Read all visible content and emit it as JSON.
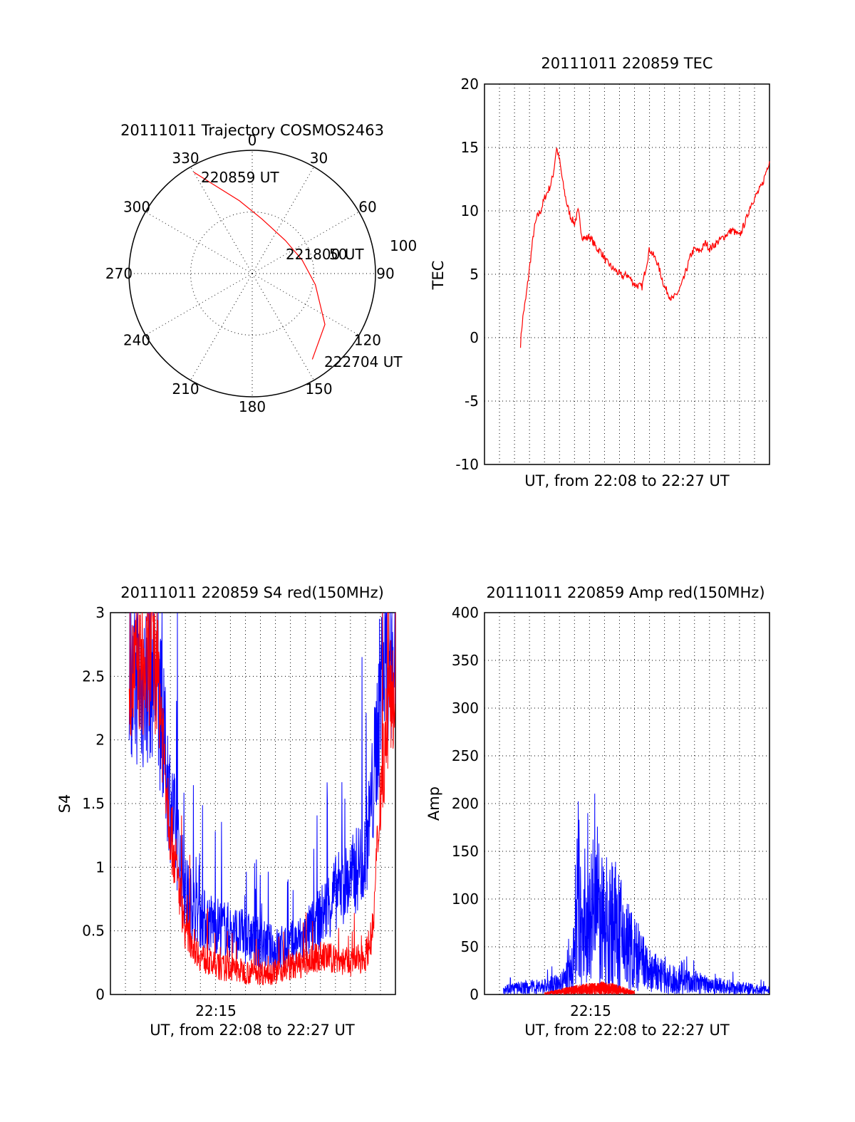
{
  "polar": {
    "title": "20111011 Trajectory COSMOS2463",
    "azimuth_labels": [
      "0",
      "30",
      "60",
      "90",
      "120",
      "150",
      "180",
      "210",
      "240",
      "270",
      "300",
      "330"
    ],
    "radius_label": "100",
    "start_label": "220859 UT",
    "mid_label": "221800 UT",
    "mid_label_overlap": "50",
    "end_label": "222704 UT",
    "track_color": "#ff0000",
    "chart_data": {
      "type": "polar-line",
      "rmax": 100,
      "rings": [
        50,
        100
      ],
      "spokes_deg": [
        0,
        30,
        60,
        90,
        120,
        150,
        180,
        210,
        240,
        270,
        300,
        330
      ],
      "track": [
        {
          "az": 330,
          "r": 95
        },
        {
          "az": 350,
          "r": 60
        },
        {
          "az": 10,
          "r": 45
        },
        {
          "az": 45,
          "r": 38
        },
        {
          "az": 75,
          "r": 42
        },
        {
          "az": 100,
          "r": 52
        },
        {
          "az": 125,
          "r": 72
        },
        {
          "az": 145,
          "r": 85
        }
      ]
    }
  },
  "tec": {
    "title": "20111011 220859 TEC",
    "ylabel": "TEC",
    "xlabel": "UT, from 22:08 to 22:27 UT",
    "yticks": [
      "-10",
      "-5",
      "0",
      "5",
      "10",
      "15",
      "20"
    ],
    "line_color": "#ff0000",
    "chart_data": {
      "type": "line",
      "xlim": [
        22.1,
        22.48
      ],
      "ylim": [
        -10,
        20
      ],
      "series": [
        {
          "x": [
            22.148,
            22.15,
            22.152,
            22.155,
            22.158,
            22.162,
            22.166,
            22.17,
            22.175,
            22.18,
            22.184,
            22.188,
            22.192,
            22.196,
            22.2,
            22.205,
            22.21,
            22.215,
            22.22,
            22.225,
            22.23,
            22.235,
            22.24,
            22.245,
            22.25,
            22.255,
            22.258,
            22.262,
            22.266,
            22.27,
            22.275,
            22.28,
            22.285,
            22.29,
            22.3,
            22.31,
            22.32,
            22.33,
            22.34,
            22.35,
            22.355,
            22.36,
            22.365,
            22.37,
            22.375,
            22.38,
            22.385,
            22.39,
            22.395,
            22.4,
            22.41,
            22.42,
            22.43,
            22.44,
            22.45,
            22.455,
            22.46,
            22.465,
            22.47,
            22.475,
            22.48
          ],
          "y": [
            -0.5,
            1,
            2,
            3,
            4.5,
            6.5,
            8.5,
            9.5,
            10,
            11,
            11.5,
            12,
            13,
            15,
            14,
            12,
            10.5,
            9.5,
            9,
            10,
            8,
            7.8,
            8,
            7.5,
            7,
            6.8,
            6.5,
            6,
            5.8,
            5.5,
            5.3,
            5,
            4.8,
            5,
            4.2,
            4,
            7,
            6,
            4,
            3,
            3.3,
            3.8,
            4.5,
            5.5,
            6.5,
            7,
            6.8,
            7,
            7.5,
            7,
            7.5,
            8,
            8.5,
            8,
            9.5,
            10.5,
            11,
            11.5,
            12,
            13,
            14
          ]
        }
      ]
    }
  },
  "s4": {
    "title": "20111011 220859 S4 red(150MHz)",
    "ylabel": "S4",
    "xlabel": "UT, from 22:08 to 22:27 UT",
    "xtick_label": "22:15",
    "yticks": [
      "0",
      "0.5",
      "1",
      "1.5",
      "2",
      "2.5",
      "3"
    ],
    "colors": {
      "blue": "#0000ff",
      "red": "#ff0000"
    },
    "chart_data": {
      "type": "line",
      "xlim": [
        22.1,
        22.48
      ],
      "ylim": [
        0,
        3
      ],
      "series": [
        {
          "x": [
            22.125,
            22.135,
            22.145,
            22.155,
            22.165,
            22.18,
            22.2,
            22.22,
            22.24,
            22.26,
            22.28,
            22.3,
            22.32,
            22.34,
            22.36,
            22.38,
            22.4,
            22.42,
            22.44,
            22.45,
            22.46,
            22.47,
            22.48
          ],
          "y": [
            2.2,
            2.5,
            2.4,
            2.6,
            2.3,
            1.5,
            0.8,
            0.6,
            0.55,
            0.5,
            0.45,
            0.4,
            0.35,
            0.38,
            0.45,
            0.6,
            0.8,
            0.9,
            1.1,
            1.6,
            2.4,
            2.7,
            2.6
          ]
        },
        {
          "x": [
            22.125,
            22.135,
            22.145,
            22.155,
            22.165,
            22.18,
            22.2,
            22.22,
            22.24,
            22.26,
            22.28,
            22.3,
            22.32,
            22.34,
            22.36,
            22.38,
            22.4,
            22.42,
            22.44,
            22.45,
            22.46,
            22.47,
            22.48
          ],
          "y": [
            2.4,
            2.6,
            2.5,
            2.7,
            2.4,
            1.3,
            0.5,
            0.3,
            0.22,
            0.2,
            0.18,
            0.17,
            0.18,
            0.22,
            0.25,
            0.3,
            0.28,
            0.25,
            0.3,
            0.5,
            1.6,
            2.2,
            2.5
          ]
        }
      ]
    }
  },
  "amp": {
    "title": "20111011 220859 Amp red(150MHz)",
    "ylabel": "Amp",
    "xlabel": "UT, from 22:08 to 22:27 UT",
    "xtick_label": "22:15",
    "yticks": [
      "0",
      "50",
      "100",
      "150",
      "200",
      "250",
      "300",
      "350",
      "400"
    ],
    "colors": {
      "blue": "#0000ff",
      "red": "#ff0000"
    },
    "chart_data": {
      "type": "line",
      "xlim": [
        22.1,
        22.48
      ],
      "ylim": [
        0,
        400
      ],
      "series": [
        {
          "x": [
            22.125,
            22.15,
            22.175,
            22.2,
            22.215,
            22.22,
            22.225,
            22.23,
            22.24,
            22.25,
            22.26,
            22.27,
            22.28,
            22.3,
            22.32,
            22.34,
            22.36,
            22.38,
            22.4,
            22.42,
            22.44,
            22.46,
            22.48
          ],
          "y": [
            8,
            10,
            12,
            15,
            30,
            60,
            150,
            80,
            100,
            130,
            90,
            110,
            90,
            60,
            35,
            25,
            20,
            18,
            15,
            12,
            10,
            8,
            6
          ]
        },
        {
          "x": [
            22.18,
            22.2,
            22.22,
            22.24,
            22.26,
            22.28,
            22.3
          ],
          "y": [
            2,
            5,
            8,
            10,
            12,
            8,
            3
          ]
        }
      ]
    }
  }
}
